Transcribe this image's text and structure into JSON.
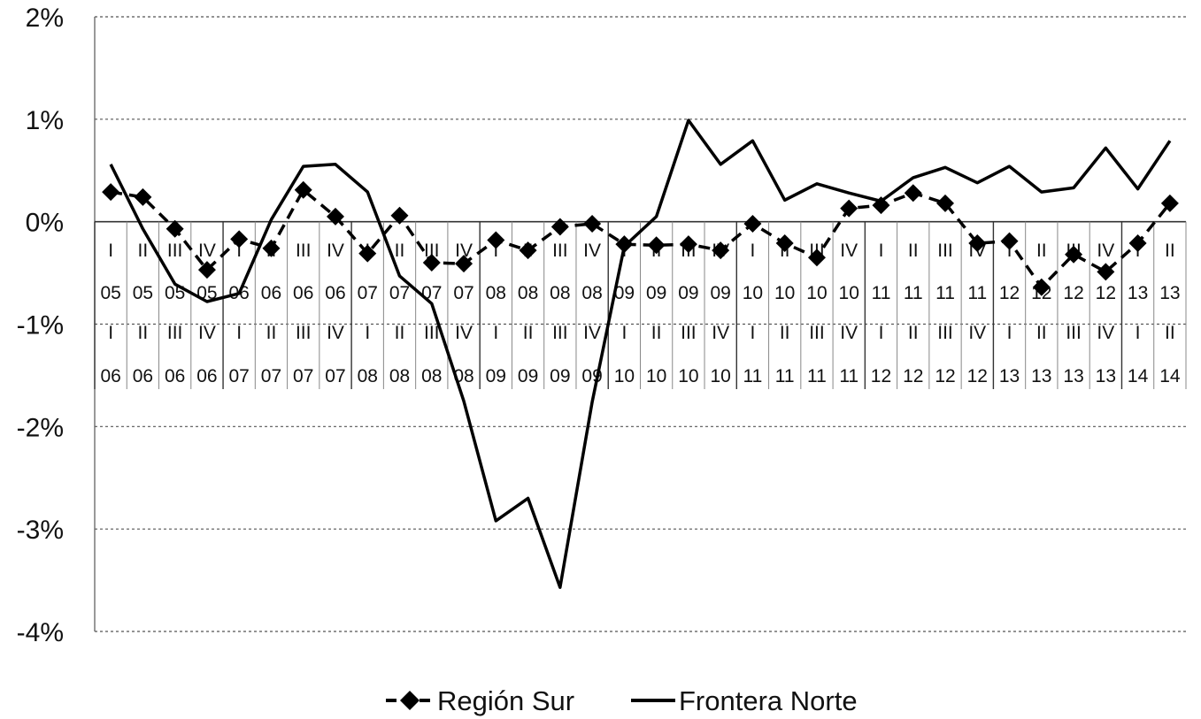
{
  "chart_data": {
    "type": "line",
    "ylim": [
      -4,
      2
    ],
    "yticks": [
      2,
      1,
      0,
      -1,
      -2,
      -3,
      -4
    ],
    "ytick_labels": [
      "2%",
      "1%",
      "0%",
      "-1%",
      "-2%",
      "-3%",
      "-4%"
    ],
    "grid": true,
    "legend_position": "bottom",
    "categories_top": {
      "quarters": [
        "I",
        "II",
        "III",
        "IV",
        "I",
        "II",
        "III",
        "IV",
        "I",
        "II",
        "III",
        "IV",
        "I",
        "II",
        "III",
        "IV",
        "I",
        "II",
        "III",
        "IV",
        "I",
        "II",
        "III",
        "IV",
        "I",
        "II",
        "III",
        "IV",
        "I",
        "II",
        "III",
        "IV",
        "I",
        "II"
      ],
      "years": [
        "05",
        "05",
        "05",
        "05",
        "06",
        "06",
        "06",
        "06",
        "07",
        "07",
        "07",
        "07",
        "08",
        "08",
        "08",
        "08",
        "09",
        "09",
        "09",
        "09",
        "10",
        "10",
        "10",
        "10",
        "11",
        "11",
        "11",
        "11",
        "12",
        "12",
        "12",
        "12",
        "13",
        "13"
      ]
    },
    "categories_bottom": {
      "quarters": [
        "I",
        "II",
        "III",
        "IV",
        "I",
        "II",
        "III",
        "IV",
        "I",
        "II",
        "III",
        "IV",
        "I",
        "II",
        "III",
        "IV",
        "I",
        "II",
        "III",
        "IV",
        "I",
        "II",
        "III",
        "IV",
        "I",
        "II",
        "III",
        "IV",
        "I",
        "II",
        "III",
        "IV",
        "I",
        "II"
      ],
      "years": [
        "06",
        "06",
        "06",
        "06",
        "07",
        "07",
        "07",
        "07",
        "08",
        "08",
        "08",
        "08",
        "09",
        "09",
        "09",
        "09",
        "10",
        "10",
        "10",
        "10",
        "11",
        "11",
        "11",
        "11",
        "12",
        "12",
        "12",
        "12",
        "13",
        "13",
        "13",
        "13",
        "14",
        "14"
      ]
    },
    "series": [
      {
        "name": "Región Sur",
        "style": "dashed-diamond",
        "values": [
          0.29,
          0.24,
          -0.07,
          -0.47,
          -0.17,
          -0.26,
          0.31,
          0.05,
          -0.31,
          0.06,
          -0.4,
          -0.41,
          -0.18,
          -0.28,
          -0.05,
          -0.02,
          -0.22,
          -0.23,
          -0.22,
          -0.28,
          -0.02,
          -0.21,
          -0.35,
          0.13,
          0.16,
          0.28,
          0.18,
          -0.21,
          -0.19,
          -0.64,
          -0.32,
          -0.49,
          -0.21,
          0.18
        ]
      },
      {
        "name": "Frontera Norte",
        "style": "solid",
        "values": [
          0.56,
          -0.07,
          -0.61,
          -0.78,
          -0.7,
          0.02,
          0.54,
          0.56,
          0.29,
          -0.53,
          -0.8,
          -1.75,
          -2.92,
          -2.7,
          -3.57,
          -1.76,
          -0.24,
          0.05,
          0.99,
          0.56,
          0.79,
          0.21,
          0.37,
          0.28,
          0.2,
          0.43,
          0.53,
          0.38,
          0.54,
          0.29,
          0.33,
          0.72,
          0.32,
          0.79
        ]
      }
    ]
  }
}
